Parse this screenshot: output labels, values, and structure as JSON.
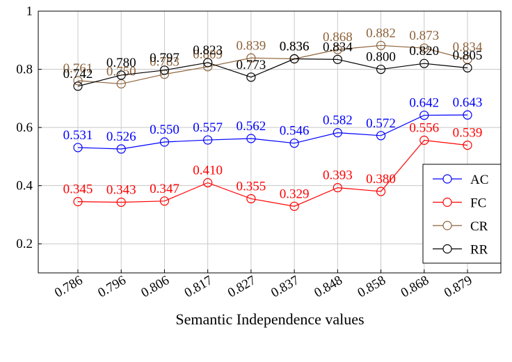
{
  "chart_data": {
    "type": "line",
    "xlabel": "Semantic Independence values",
    "categories": [
      "0.786",
      "0.796",
      "0.806",
      "0.817",
      "0.827",
      "0.837",
      "0.848",
      "0.858",
      "0.868",
      "0.879"
    ],
    "ylim": [
      0.1,
      1
    ],
    "yticks": [
      0.2,
      0.4,
      0.6,
      0.8,
      1
    ],
    "grid": true,
    "legend": "lower right",
    "series": [
      {
        "name": "AC",
        "color": "#0000ff",
        "values": [
          0.531,
          0.526,
          0.55,
          0.557,
          0.562,
          0.546,
          0.582,
          0.572,
          0.642,
          0.643
        ],
        "value_labels": [
          "0.531",
          "0.526",
          "0.550",
          "0.557",
          "0.562",
          "0.546",
          "0.582",
          "0.572",
          "0.642",
          "0.643"
        ]
      },
      {
        "name": "FC",
        "color": "#ff0000",
        "values": [
          0.345,
          0.343,
          0.347,
          0.41,
          0.355,
          0.329,
          0.393,
          0.38,
          0.556,
          0.539
        ],
        "value_labels": [
          "0.345",
          "0.343",
          "0.347",
          "0.410",
          "0.355",
          "0.329",
          "0.393",
          "0.380",
          "0.556",
          "0.539"
        ]
      },
      {
        "name": "CR",
        "color": "#8c6239",
        "values": [
          0.761,
          0.75,
          0.783,
          0.809,
          0.839,
          0.836,
          0.868,
          0.882,
          0.873,
          0.834
        ],
        "value_labels": [
          "0.761",
          "0.750",
          "0.783",
          "0.809",
          "0.839",
          "0.836",
          "0.868",
          "0.882",
          "0.873",
          "0.834"
        ]
      },
      {
        "name": "RR",
        "color": "#000000",
        "values": [
          0.742,
          0.78,
          0.797,
          0.823,
          0.773,
          0.836,
          0.834,
          0.8,
          0.82,
          0.805
        ],
        "value_labels": [
          "0.742",
          "0.780",
          "0.797",
          "0.823",
          "0.773",
          "0.836",
          "0.834",
          "0.800",
          "0.820",
          "0.805"
        ]
      }
    ]
  }
}
